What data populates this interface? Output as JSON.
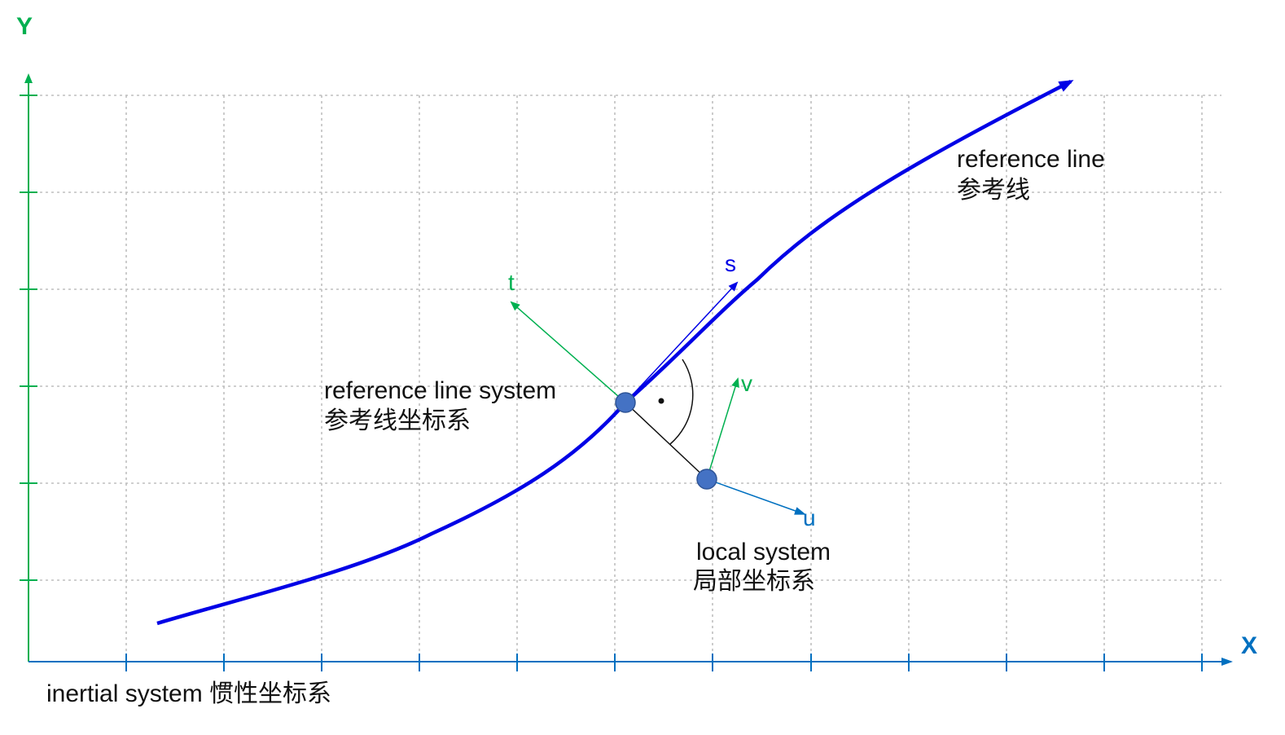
{
  "axes": {
    "y_label": "Y",
    "x_label": "X",
    "axis_color": "#00b050",
    "x_axis_color": "#0070c0",
    "inertial_system": "inertial system 惯性坐标系"
  },
  "reference_line": {
    "label_en": "reference line",
    "label_zh": "参考线",
    "color": "#0000e6"
  },
  "reference_line_system": {
    "label_en": "reference line system",
    "label_zh": "参考线坐标系",
    "s_label": "s",
    "t_label": "t",
    "s_color": "#0000e6",
    "t_color": "#00b050"
  },
  "local_system": {
    "label_en": "local system",
    "label_zh": "局部坐标系",
    "u_label": "u",
    "v_label": "v",
    "u_color": "#0070c0",
    "v_color": "#00b050"
  },
  "point_color": "#4472c4",
  "grid_color": "#bfbfbf"
}
